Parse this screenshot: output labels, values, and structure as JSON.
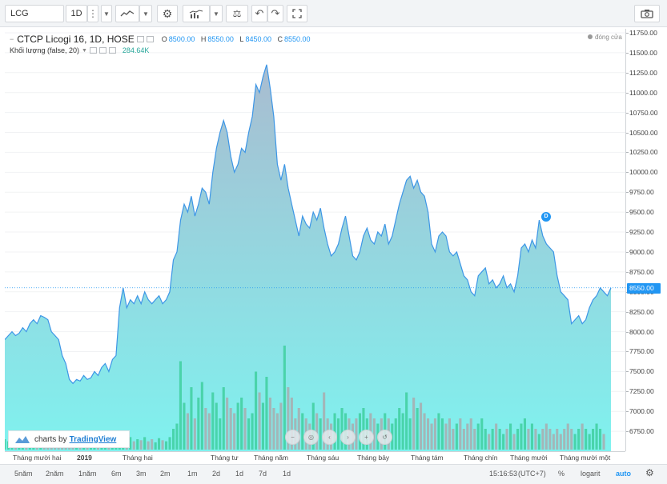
{
  "toolbar": {
    "symbol": "LCG",
    "interval": "1D",
    "icons": [
      "more-vertical-icon",
      "bar-chart-icon",
      "line-chart-icon",
      "gear-icon",
      "indicators-icon",
      "compare-icon",
      "undo-icon",
      "redo-icon",
      "fullscreen-icon",
      "camera-icon"
    ]
  },
  "legend": {
    "title": "CTCP Licogi 16, 1D, HOSE",
    "o_label": "O",
    "o": "8500.00",
    "h_label": "H",
    "h": "8550.00",
    "l_label": "L",
    "l": "8450.00",
    "c_label": "C",
    "c": "8550.00",
    "volume_label": "Khối lượng (false, 20)",
    "volume_value": "284.64K",
    "close_tag": "đóng cửa"
  },
  "dividend_badge": "D",
  "current_price": "8550.00",
  "branding": {
    "prefix": "charts by",
    "brand": "TradingView"
  },
  "colors": {
    "line": "#3d96e6",
    "fill_top": "#a9bcd0",
    "fill_bottom": "#7ff2ef",
    "vol_up": "#3fcf9f",
    "vol_down": "#a9abae",
    "accent": "#2196f3"
  },
  "chart_data": {
    "type": "area",
    "ylim": [
      6500,
      11800
    ],
    "y_ticks": [
      11750,
      11500,
      11250,
      11000,
      10750,
      10500,
      10250,
      10000,
      9750,
      9500,
      9250,
      9000,
      8750,
      8500,
      8250,
      8000,
      7750,
      7500,
      7250,
      7000,
      6750
    ],
    "y_tick_labels": [
      "11750.00",
      "11500.00",
      "11250.00",
      "11000.00",
      "10750.00",
      "10500.00",
      "10250.00",
      "10000.00",
      "9750.00",
      "9500.00",
      "9250.00",
      "9000.00",
      "8750.00",
      "8500.00",
      "8250.00",
      "8000.00",
      "7750.00",
      "7500.00",
      "7250.00",
      "7000.00",
      "6750.00"
    ],
    "x_labels": [
      "Tháng mười hai",
      "2019",
      "Tháng hai",
      "Tháng tư",
      "Tháng năm",
      "Tháng sáu",
      "Tháng bảy",
      "Tháng tám",
      "Tháng chín",
      "Tháng mười",
      "Tháng mười một"
    ],
    "x_label_bold": [
      false,
      true,
      false,
      false,
      false,
      false,
      false,
      false,
      false,
      false,
      false
    ],
    "price": [
      7900,
      7950,
      8000,
      7950,
      7980,
      8050,
      8000,
      8100,
      8150,
      8100,
      8200,
      8180,
      8150,
      8000,
      7950,
      7900,
      7700,
      7600,
      7400,
      7350,
      7400,
      7380,
      7450,
      7400,
      7420,
      7500,
      7450,
      7550,
      7600,
      7500,
      7650,
      7700,
      8300,
      8550,
      8300,
      8400,
      8350,
      8450,
      8350,
      8500,
      8400,
      8350,
      8400,
      8450,
      8350,
      8400,
      8500,
      8900,
      9000,
      9400,
      9600,
      9500,
      9700,
      9450,
      9600,
      9800,
      9750,
      9600,
      10000,
      10300,
      10500,
      10650,
      10500,
      10200,
      10000,
      10100,
      10300,
      10250,
      10500,
      10700,
      11100,
      11000,
      11200,
      11350,
      11050,
      10700,
      10100,
      9900,
      10100,
      9800,
      9600,
      9400,
      9200,
      9450,
      9350,
      9300,
      9500,
      9400,
      9550,
      9300,
      9100,
      8950,
      9000,
      9100,
      9300,
      9450,
      9200,
      8950,
      8900,
      9000,
      9200,
      9300,
      9150,
      9100,
      9250,
      9200,
      9350,
      9100,
      9200,
      9400,
      9600,
      9750,
      9900,
      9950,
      9800,
      9900,
      9750,
      9700,
      9500,
      9100,
      9000,
      9200,
      9250,
      9200,
      9000,
      8950,
      9000,
      8850,
      8700,
      8650,
      8500,
      8450,
      8700,
      8750,
      8800,
      8600,
      8650,
      8550,
      8600,
      8700,
      8550,
      8600,
      8500,
      8700,
      9050,
      9100,
      9000,
      9150,
      9050,
      9400,
      9200,
      9100,
      9050,
      9000,
      8700,
      8500,
      8450,
      8400,
      8100,
      8150,
      8200,
      8100,
      8150,
      8300,
      8400,
      8450,
      8550,
      8500,
      8450,
      8550
    ],
    "volume": [
      0.1,
      0.08,
      0.12,
      0.07,
      0.09,
      0.11,
      0.06,
      0.08,
      0.1,
      0.07,
      0.09,
      0.12,
      0.08,
      0.1,
      0.06,
      0.09,
      0.07,
      0.11,
      0.08,
      0.06,
      0.1,
      0.07,
      0.08,
      0.09,
      0.06,
      0.12,
      0.08,
      0.1,
      0.07,
      0.09,
      0.11,
      0.08,
      0.14,
      0.16,
      0.1,
      0.12,
      0.08,
      0.1,
      0.09,
      0.12,
      0.08,
      0.1,
      0.07,
      0.11,
      0.09,
      0.08,
      0.12,
      0.2,
      0.25,
      0.85,
      0.45,
      0.35,
      0.6,
      0.3,
      0.5,
      0.65,
      0.4,
      0.35,
      0.55,
      0.45,
      0.3,
      0.6,
      0.5,
      0.4,
      0.35,
      0.45,
      0.5,
      0.4,
      0.3,
      0.35,
      0.75,
      0.55,
      0.45,
      0.7,
      0.5,
      0.4,
      0.35,
      0.45,
      1.0,
      0.6,
      0.5,
      0.3,
      0.4,
      0.35,
      0.3,
      0.25,
      0.45,
      0.35,
      0.3,
      0.55,
      0.3,
      0.25,
      0.35,
      0.3,
      0.4,
      0.35,
      0.3,
      0.25,
      0.3,
      0.35,
      0.4,
      0.3,
      0.35,
      0.3,
      0.25,
      0.3,
      0.35,
      0.3,
      0.25,
      0.3,
      0.4,
      0.35,
      0.55,
      0.3,
      0.5,
      0.4,
      0.45,
      0.35,
      0.3,
      0.25,
      0.3,
      0.35,
      0.3,
      0.25,
      0.3,
      0.2,
      0.25,
      0.3,
      0.2,
      0.25,
      0.3,
      0.2,
      0.25,
      0.3,
      0.2,
      0.15,
      0.2,
      0.25,
      0.2,
      0.15,
      0.2,
      0.25,
      0.15,
      0.2,
      0.25,
      0.3,
      0.2,
      0.25,
      0.2,
      0.15,
      0.2,
      0.25,
      0.2,
      0.15,
      0.2,
      0.15,
      0.2,
      0.25,
      0.2,
      0.15,
      0.2,
      0.25,
      0.2,
      0.15,
      0.2,
      0.25,
      0.2,
      0.15
    ]
  },
  "bottom": {
    "ranges": [
      "5năm",
      "2năm",
      "1năm",
      "6m",
      "3m",
      "2m",
      "1m",
      "2d",
      "1d",
      "7d",
      "1d"
    ],
    "time": "15:16:53",
    "tz": "(UTC+7)",
    "percent": "%",
    "log": "logarit",
    "auto": "auto"
  }
}
